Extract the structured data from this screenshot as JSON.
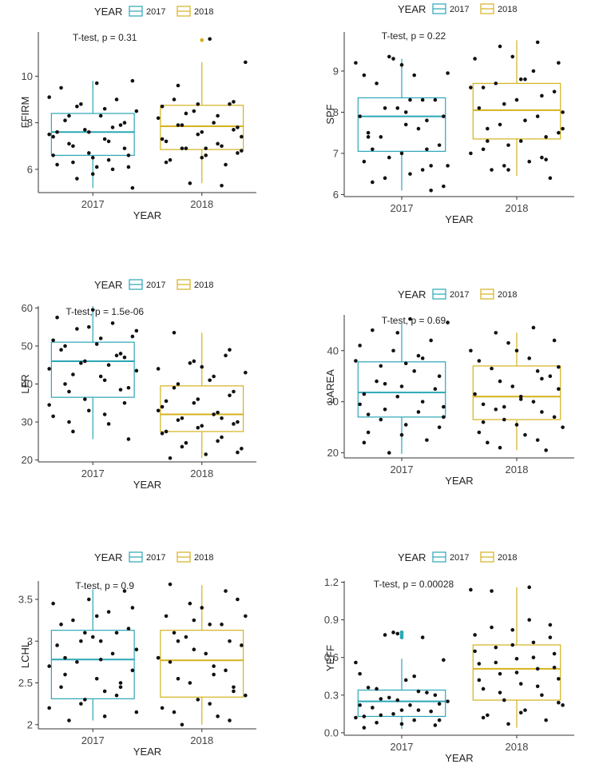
{
  "colors": {
    "2017": "#2aa7b6",
    "2018": "#d4b21e",
    "points": "#111111",
    "axis": "#333333"
  },
  "charts": [
    {
      "ylabel": "FFIRM",
      "xlabel": "YEAR",
      "legend_title": "YEAR",
      "legend_labels": [
        "2017",
        "2018"
      ],
      "annotation": "T-test, p = 0.31",
      "categories": [
        "2017",
        "2018"
      ],
      "yticks": [
        6,
        8,
        10
      ],
      "ylim": [
        5.0,
        11.9
      ],
      "boxes": [
        {
          "q1": 6.6,
          "median": 7.6,
          "q3": 8.4,
          "lower": 5.2,
          "upper": 9.8,
          "outliers": []
        },
        {
          "q1": 6.85,
          "median": 7.85,
          "q3": 8.75,
          "lower": 5.4,
          "upper": 10.6,
          "outliers": [
            11.55
          ]
        }
      ],
      "points": [
        [
          9.1,
          8.6,
          8.3,
          8.0,
          7.6,
          7.4,
          7.2,
          7.0,
          6.6,
          6.5,
          6.2,
          6.0,
          5.6,
          5.2,
          9.7,
          9.5,
          9.0,
          8.8,
          8.5,
          8.3,
          8.1,
          7.9,
          7.7,
          7.5,
          7.3,
          7.1,
          6.9,
          6.7,
          6.6,
          6.4,
          6.3,
          6.1,
          5.8,
          7.6,
          7.8,
          8.7,
          9.8,
          6.1
        ],
        [
          9.6,
          8.9,
          8.8,
          8.7,
          8.3,
          7.9,
          7.8,
          7.6,
          7.2,
          7.0,
          6.9,
          6.8,
          6.6,
          6.4,
          6.2,
          5.4,
          10.6,
          11.6,
          9.0,
          8.8,
          8.5,
          8.2,
          8.0,
          7.9,
          7.7,
          7.5,
          7.3,
          7.1,
          6.9,
          6.7,
          6.5,
          6.3,
          5.3,
          8.4,
          7.4,
          6.9
        ]
      ]
    },
    {
      "ylabel": "SPF",
      "xlabel": "YEAR",
      "legend_title": "YEAR",
      "legend_labels": [
        "2017",
        "2018"
      ],
      "annotation": "T-test, p = 0.22",
      "categories": [
        "2017",
        "2018"
      ],
      "yticks": [
        6,
        7,
        8,
        9
      ],
      "ylim": [
        5.95,
        9.95
      ],
      "boxes": [
        {
          "q1": 7.05,
          "median": 7.9,
          "q3": 8.35,
          "lower": 6.1,
          "upper": 9.3,
          "outliers": []
        },
        {
          "q1": 7.35,
          "median": 8.05,
          "q3": 8.7,
          "lower": 6.45,
          "upper": 9.75,
          "outliers": []
        }
      ],
      "points": [
        [
          9.15,
          8.9,
          8.3,
          8.1,
          7.9,
          7.7,
          7.4,
          7.1,
          6.9,
          6.7,
          6.5,
          6.3,
          6.1,
          9.3,
          9.2,
          8.9,
          8.7,
          8.3,
          8.1,
          7.9,
          7.6,
          7.4,
          7.2,
          7.0,
          6.8,
          6.6,
          6.4,
          6.2,
          8.0,
          7.5,
          7.8,
          9.35,
          8.95,
          8.3,
          7.1,
          6.7
        ],
        [
          9.7,
          9.6,
          9.2,
          8.8,
          8.6,
          8.4,
          8.2,
          8.0,
          7.8,
          7.6,
          7.4,
          7.2,
          7.0,
          6.8,
          6.6,
          6.4,
          9.35,
          9.3,
          9.0,
          8.7,
          8.5,
          8.3,
          8.1,
          7.9,
          7.7,
          7.5,
          7.3,
          7.1,
          6.9,
          6.7,
          7.6,
          8.8,
          7.3,
          6.85,
          6.6,
          8.6
        ]
      ]
    },
    {
      "ylabel": "LFR",
      "xlabel": "YEAR",
      "legend_title": "YEAR",
      "legend_labels": [
        "2017",
        "2018"
      ],
      "annotation": "T-test, p = 1.5e-06",
      "categories": [
        "2017",
        "2018"
      ],
      "yticks": [
        20,
        30,
        40,
        50,
        60
      ],
      "ylim": [
        19.5,
        60.5
      ],
      "boxes": [
        {
          "q1": 36.5,
          "median": 46.0,
          "q3": 51.0,
          "lower": 25.5,
          "upper": 60.5,
          "outliers": []
        },
        {
          "q1": 27.5,
          "median": 32.0,
          "q3": 39.5,
          "lower": 20.5,
          "upper": 53.5,
          "outliers": []
        }
      ],
      "points": [
        [
          54.0,
          52.0,
          50.0,
          48.0,
          46.0,
          44.0,
          41.0,
          38.0,
          35.0,
          33.0,
          31.5,
          29.5,
          27.5,
          25.5,
          59.5,
          57.5,
          56.0,
          54.5,
          52.5,
          50.5,
          49.0,
          47.5,
          45.5,
          43.5,
          42.0,
          40.0,
          38.5,
          36.0,
          34.5,
          32.0,
          30.0,
          47.0,
          55.0,
          51.5,
          45.0,
          42.5,
          39.0
        ],
        [
          53.5,
          49.0,
          46.0,
          44.0,
          42.0,
          40.0,
          38.0,
          36.0,
          34.0,
          32.5,
          31.0,
          30.0,
          29.0,
          27.5,
          26.0,
          24.5,
          23.0,
          21.5,
          20.5,
          47.5,
          45.5,
          43.0,
          41.0,
          39.0,
          37.0,
          35.0,
          33.0,
          32.0,
          30.5,
          29.5,
          28.5,
          27.0,
          25.0,
          23.5,
          22.0,
          44.5,
          35.5,
          31.0
        ]
      ]
    },
    {
      "ylabel": "LAREA",
      "xlabel": "YEAR",
      "legend_title": "YEAR",
      "legend_labels": [
        "2017",
        "2018"
      ],
      "annotation": "T-test, p = 0.69",
      "categories": [
        "2017",
        "2018"
      ],
      "yticks": [
        20,
        30,
        40
      ],
      "ylim": [
        19.0,
        47.0
      ],
      "boxes": [
        {
          "q1": 27.0,
          "median": 31.8,
          "q3": 37.8,
          "lower": 19.8,
          "upper": 45.5,
          "outliers": []
        },
        {
          "q1": 26.5,
          "median": 31.0,
          "q3": 37.0,
          "lower": 20.5,
          "upper": 43.5,
          "outliers": []
        }
      ],
      "points": [
        [
          43.5,
          41.0,
          39.0,
          37.0,
          35.0,
          33.0,
          31.5,
          30.0,
          28.5,
          27.0,
          25.5,
          24.0,
          22.5,
          20.0,
          45.5,
          46.2,
          44.0,
          42.0,
          40.0,
          38.0,
          36.0,
          34.0,
          32.5,
          31.0,
          29.5,
          28.0,
          26.5,
          25.0,
          23.5,
          22.0,
          38.5,
          33.5,
          29.0,
          37.5,
          27.5
        ],
        [
          44.5,
          43.5,
          42.0,
          40.0,
          38.0,
          36.0,
          34.0,
          32.5,
          31.0,
          29.5,
          28.0,
          26.5,
          25.0,
          23.5,
          22.0,
          20.5,
          41.5,
          40.0,
          38.5,
          36.5,
          35.0,
          33.0,
          31.5,
          30.0,
          28.5,
          27.0,
          25.5,
          24.0,
          22.5,
          21.0,
          36.8,
          30.5,
          26.0,
          34.5,
          29.0
        ]
      ]
    },
    {
      "ylabel": "LCHL",
      "xlabel": "YEAR",
      "legend_title": "YEAR",
      "legend_labels": [
        "2017",
        "2018"
      ],
      "annotation": "T-test, p = 0.9",
      "categories": [
        "2017",
        "2018"
      ],
      "yticks": [
        2.0,
        2.5,
        3.0,
        3.5
      ],
      "ylim": [
        1.95,
        3.72
      ],
      "boxes": [
        {
          "q1": 2.31,
          "median": 2.78,
          "q3": 3.13,
          "lower": 2.05,
          "upper": 3.62,
          "outliers": []
        },
        {
          "q1": 2.33,
          "median": 2.77,
          "q3": 3.13,
          "lower": 2.0,
          "upper": 3.67,
          "outliers": []
        }
      ],
      "points": [
        [
          3.4,
          3.3,
          3.2,
          3.1,
          3.0,
          2.9,
          2.78,
          2.6,
          2.45,
          2.3,
          2.2,
          2.1,
          2.05,
          3.6,
          3.5,
          3.45,
          3.35,
          3.25,
          3.15,
          3.05,
          2.95,
          2.85,
          2.75,
          2.65,
          2.55,
          2.45,
          2.35,
          2.25,
          2.15,
          3.0,
          2.8,
          2.5,
          3.1,
          2.7,
          2.4
        ],
        [
          3.68,
          3.6,
          3.45,
          3.3,
          3.2,
          3.1,
          3.0,
          2.9,
          2.8,
          2.7,
          2.55,
          2.4,
          2.3,
          2.2,
          2.1,
          2.0,
          3.5,
          3.4,
          3.3,
          3.2,
          3.05,
          2.95,
          2.85,
          2.75,
          2.65,
          2.5,
          2.35,
          2.25,
          2.15,
          2.05,
          3.25,
          2.8,
          2.6,
          3.0,
          2.45
        ]
      ]
    },
    {
      "ylabel": "YEFF",
      "xlabel": "YEAR",
      "legend_title": "YEAR",
      "legend_labels": [
        "2017",
        "2018"
      ],
      "annotation": "T-test, p = 0.00028",
      "categories": [
        "2017",
        "2018"
      ],
      "yticks": [
        "0.0",
        "0.3",
        "0.6",
        "0.9",
        "1.2"
      ],
      "ylim": [
        -0.02,
        1.21
      ],
      "boxes": [
        {
          "q1": 0.13,
          "median": 0.25,
          "q3": 0.34,
          "lower": 0.03,
          "upper": 0.59,
          "outliers": [
            0.76,
            0.78,
            0.8
          ]
        },
        {
          "q1": 0.26,
          "median": 0.51,
          "q3": 0.7,
          "lower": 0.04,
          "upper": 1.16,
          "outliers": []
        }
      ],
      "points": [
        [
          0.8,
          0.56,
          0.45,
          0.35,
          0.3,
          0.26,
          0.22,
          0.18,
          0.14,
          0.1,
          0.07,
          0.04,
          0.76,
          0.78,
          0.58,
          0.42,
          0.36,
          0.32,
          0.28,
          0.25,
          0.22,
          0.2,
          0.17,
          0.15,
          0.12,
          0.1,
          0.08,
          0.06,
          0.79,
          0.47,
          0.33,
          0.27,
          0.23,
          0.18,
          0.13
        ],
        [
          1.16,
          1.13,
          0.86,
          0.82,
          0.78,
          0.72,
          0.68,
          0.63,
          0.59,
          0.55,
          0.51,
          0.47,
          0.43,
          0.39,
          0.35,
          0.3,
          0.26,
          0.22,
          0.18,
          0.14,
          0.1,
          0.07,
          1.14,
          0.9,
          0.84,
          0.76,
          0.7,
          0.65,
          0.6,
          0.56,
          0.52,
          0.48,
          0.42,
          0.37,
          0.32,
          0.24,
          0.16,
          0.12
        ]
      ]
    }
  ]
}
